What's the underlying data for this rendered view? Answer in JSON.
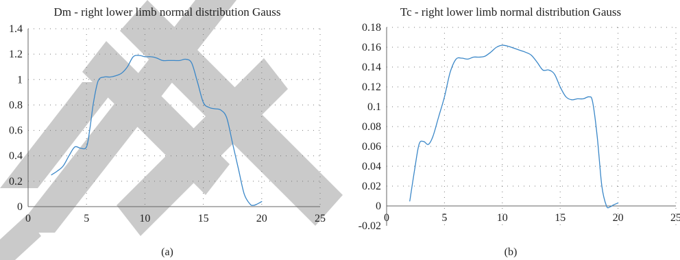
{
  "colors": {
    "line": "#3a87c8",
    "watermark": "#c8c8c8",
    "axis": "#666666"
  },
  "chart_data": [
    {
      "type": "line",
      "panel_label": "(a)",
      "title": "Dm - right lower limb normal distribution Gauss",
      "xlabel": "",
      "ylabel": "",
      "xlim": [
        0,
        25
      ],
      "ylim": [
        0,
        1.4
      ],
      "x_ticks": [
        0,
        5,
        10,
        15,
        20,
        25
      ],
      "x_tick_labels": [
        "0",
        "5",
        "10",
        "15",
        "20",
        "25"
      ],
      "y_ticks": [
        0,
        0.2,
        0.4,
        0.6,
        0.8,
        1,
        1.2,
        1.4
      ],
      "y_tick_labels": [
        "0",
        "0.2",
        "0.4",
        "0.6",
        "0.8",
        "1",
        "1.2",
        "1.4"
      ],
      "grid": true,
      "series": [
        {
          "x": [
            2.0,
            2.5,
            3.0,
            3.5,
            4.0,
            4.5,
            5.0,
            5.3,
            5.6,
            6.0,
            6.5,
            7.0,
            7.5,
            8.0,
            8.5,
            9.0,
            9.5,
            10.0,
            10.5,
            11.0,
            11.5,
            12.0,
            12.5,
            13.0,
            13.5,
            14.0,
            14.5,
            15.0,
            15.5,
            16.0,
            16.5,
            17.0,
            17.5,
            18.0,
            18.5,
            19.0,
            19.3,
            19.6,
            20.0
          ],
          "y": [
            0.25,
            0.28,
            0.32,
            0.4,
            0.47,
            0.46,
            0.47,
            0.62,
            0.82,
            0.99,
            1.02,
            1.02,
            1.03,
            1.05,
            1.1,
            1.18,
            1.19,
            1.18,
            1.18,
            1.17,
            1.15,
            1.15,
            1.15,
            1.15,
            1.16,
            1.13,
            0.98,
            0.82,
            0.78,
            0.77,
            0.76,
            0.7,
            0.5,
            0.3,
            0.1,
            0.02,
            0.01,
            0.02,
            0.04
          ]
        }
      ]
    },
    {
      "type": "line",
      "panel_label": "(b)",
      "title": "Tc - right lower limb normal distribution Gauss",
      "xlabel": "",
      "ylabel": "",
      "xlim": [
        0,
        25
      ],
      "ylim": [
        -0.02,
        0.18
      ],
      "x_ticks": [
        0,
        5,
        10,
        15,
        20,
        25
      ],
      "x_tick_labels": [
        "0",
        "5",
        "10",
        "15",
        "20",
        "25"
      ],
      "y_ticks": [
        -0.02,
        0,
        0.02,
        0.04,
        0.06,
        0.08,
        0.1,
        0.12,
        0.14,
        0.16,
        0.18
      ],
      "y_tick_labels": [
        "-0.02",
        "0",
        "0.02",
        "0.04",
        "0.06",
        "0.08",
        "0.1",
        "0.12",
        "0.14",
        "0.16",
        "0.18"
      ],
      "grid": true,
      "series": [
        {
          "x": [
            2.0,
            2.4,
            2.8,
            3.2,
            3.6,
            4.0,
            4.5,
            5.0,
            5.5,
            6.0,
            6.5,
            7.0,
            7.5,
            8.0,
            8.5,
            9.0,
            9.5,
            10.0,
            10.5,
            11.0,
            11.5,
            12.0,
            12.5,
            13.0,
            13.5,
            14.0,
            14.5,
            15.0,
            15.5,
            16.0,
            16.5,
            17.0,
            17.5,
            17.8,
            18.2,
            18.6,
            19.0,
            19.3,
            19.6,
            20.0
          ],
          "y": [
            0.005,
            0.035,
            0.062,
            0.065,
            0.062,
            0.07,
            0.09,
            0.11,
            0.135,
            0.148,
            0.149,
            0.148,
            0.15,
            0.15,
            0.151,
            0.155,
            0.16,
            0.162,
            0.161,
            0.159,
            0.157,
            0.155,
            0.152,
            0.145,
            0.137,
            0.137,
            0.133,
            0.12,
            0.11,
            0.107,
            0.108,
            0.108,
            0.11,
            0.105,
            0.07,
            0.02,
            0.0,
            -0.001,
            0.001,
            0.003
          ]
        }
      ]
    }
  ]
}
